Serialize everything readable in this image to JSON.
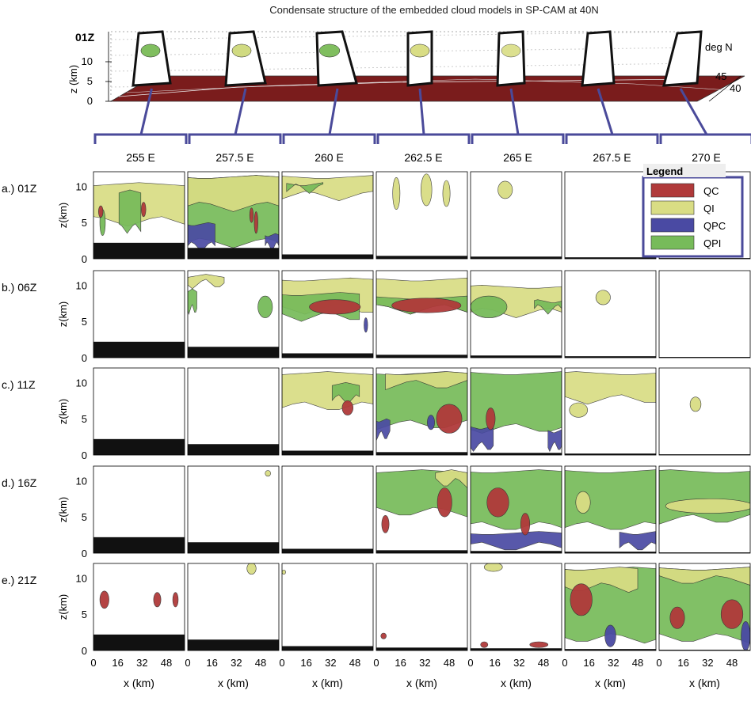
{
  "title": "Condensate structure of the embedded cloud models in SP-CAM at 40N",
  "colors": {
    "QC": "#b03a3a",
    "QI": "#d9dd84",
    "QPC": "#4a4aa3",
    "QPI": "#77bb5a",
    "terrain": "#111111",
    "strip": "#7a1c1c",
    "connector": "#4a4a9a"
  },
  "chart_data": {
    "type": "heatmap",
    "title": "Condensate structure of the embedded cloud models in SP-CAM at 40N",
    "top_panel": {
      "time_label": "01Z",
      "z_label": "z (km)",
      "z_ticks": [
        "0",
        "5",
        "10"
      ],
      "lat_label": "deg N",
      "lat_ticks": [
        "40",
        "45"
      ]
    },
    "longitudes": [
      "255 E",
      "257.5 E",
      "260 E",
      "262.5 E",
      "265 E",
      "267.5 E",
      "270 E"
    ],
    "times": [
      "a.) 01Z",
      "b.) 06Z",
      "c.) 11Z",
      "d.) 16Z",
      "e.) 21Z"
    ],
    "xlabel": "x (km)",
    "ylabel": "z(km)",
    "x_ticks": [
      "0",
      "16",
      "32",
      "48"
    ],
    "y_ticks": [
      "0",
      "5",
      "10"
    ],
    "ylim": [
      0,
      12
    ],
    "xlim": [
      0,
      60
    ],
    "legend": {
      "title": "Legend",
      "entries": [
        {
          "label": "QC",
          "color": "#b03a3a"
        },
        {
          "label": "QI",
          "color": "#d9dd84"
        },
        {
          "label": "QPC",
          "color": "#4a4aa3"
        },
        {
          "label": "QPI",
          "color": "#77bb5a"
        }
      ]
    },
    "terrain_km": [
      2.2,
      1.5,
      0.6,
      0.4,
      0.3,
      0.2,
      0.1
    ],
    "panels": [
      [
        {
          "shapes": [
            [
              "QI",
              "b",
              0,
              100,
              4.5,
              10.5
            ],
            [
              "QPI",
              "b",
              28,
              52,
              3.5,
              9.5
            ],
            [
              "QPI",
              "e",
              10,
              3,
              5,
              1.8
            ],
            [
              "QC",
              "e",
              8,
              2.5,
              6.5,
              0.8
            ],
            [
              "QC",
              "e",
              55,
              2.5,
              6.8,
              1
            ]
          ]
        },
        {
          "shapes": [
            [
              "QPI",
              "b",
              0,
              100,
              1.5,
              11.5
            ],
            [
              "QI",
              "b",
              0,
              100,
              6.5,
              11.5
            ],
            [
              "QPC",
              "b",
              0,
              30,
              1,
              5
            ],
            [
              "QPC",
              "b",
              85,
              100,
              1,
              3.5
            ],
            [
              "QC",
              "e",
              75,
              2,
              5,
              1.5
            ],
            [
              "QC",
              "e",
              70,
              2,
              6,
              1
            ]
          ]
        },
        {
          "shapes": [
            [
              "QI",
              "b",
              0,
              100,
              8,
              11.5
            ],
            [
              "QPI",
              "b",
              5,
              45,
              9,
              10.5
            ]
          ]
        },
        {
          "shapes": [
            [
              "QI",
              "e",
              22,
              4,
              9,
              2.2
            ],
            [
              "QI",
              "e",
              55,
              6,
              9.5,
              2.2
            ],
            [
              "QI",
              "e",
              77,
              4,
              9,
              1.8
            ]
          ]
        },
        {
          "shapes": [
            [
              "QI",
              "e",
              38,
              8,
              9.5,
              1.2
            ]
          ]
        },
        {
          "shapes": []
        },
        {
          "shapes": []
        }
      ],
      [
        {
          "shapes": []
        },
        {
          "shapes": [
            [
              "QI",
              "b",
              0,
              40,
              9.5,
              11.5
            ],
            [
              "QPI",
              "b",
              0,
              10,
              6,
              9.5
            ],
            [
              "QPI",
              "e",
              85,
              8,
              7,
              1.5
            ]
          ]
        },
        {
          "shapes": [
            [
              "QI",
              "b",
              0,
              100,
              6,
              11
            ],
            [
              "QPI",
              "b",
              0,
              85,
              5,
              9
            ],
            [
              "QC",
              "e",
              58,
              28,
              7,
              1
            ],
            [
              "QPC",
              "e",
              92,
              2,
              4.5,
              1
            ]
          ]
        },
        {
          "shapes": [
            [
              "QI",
              "b",
              0,
              100,
              6,
              11
            ],
            [
              "QPI",
              "b",
              0,
              100,
              6,
              8.5
            ],
            [
              "QC",
              "e",
              55,
              38,
              7.2,
              1
            ]
          ]
        },
        {
          "shapes": [
            [
              "QI",
              "b",
              0,
              100,
              5.5,
              10
            ],
            [
              "QPI",
              "b",
              70,
              100,
              6,
              8
            ],
            [
              "QPI",
              "e",
              20,
              20,
              7,
              1.5
            ]
          ]
        },
        {
          "shapes": [
            [
              "QI",
              "e",
              42,
              8,
              8.3,
              1
            ]
          ]
        },
        {
          "shapes": []
        }
      ],
      [
        {
          "shapes": []
        },
        {
          "shapes": []
        },
        {
          "shapes": [
            [
              "QI",
              "b",
              0,
              100,
              6,
              11.5
            ],
            [
              "QPI",
              "b",
              55,
              85,
              7,
              10
            ],
            [
              "QC",
              "e",
              72,
              6,
              6.5,
              1
            ]
          ]
        },
        {
          "shapes": [
            [
              "QPI",
              "b",
              0,
              100,
              3.5,
              11.5
            ],
            [
              "QI",
              "b",
              10,
              100,
              9,
              11.5
            ],
            [
              "QPC",
              "b",
              0,
              15,
              2,
              5
            ],
            [
              "QC",
              "e",
              80,
              14,
              5,
              2
            ],
            [
              "QPC",
              "e",
              60,
              4,
              4.5,
              1
            ]
          ]
        },
        {
          "shapes": [
            [
              "QPI",
              "b",
              0,
              100,
              3,
              11.5
            ],
            [
              "QPC",
              "b",
              0,
              25,
              0.5,
              4
            ],
            [
              "QPC",
              "b",
              85,
              100,
              0.5,
              3.5
            ],
            [
              "QC",
              "e",
              22,
              5,
              5,
              1.5
            ]
          ]
        },
        {
          "shapes": [
            [
              "QI",
              "b",
              0,
              100,
              7,
              11.5
            ],
            [
              "QI",
              "e",
              15,
              10,
              6.2,
              1
            ]
          ]
        },
        {
          "shapes": [
            [
              "QI",
              "e",
              40,
              6,
              7,
              1
            ]
          ]
        }
      ],
      [
        {
          "shapes": []
        },
        {
          "shapes": [
            [
              "QI",
              "e",
              88,
              3,
              11,
              0.4
            ]
          ]
        },
        {
          "shapes": []
        },
        {
          "shapes": [
            [
              "QPI",
              "b",
              0,
              100,
              5,
              11.5
            ],
            [
              "QI",
              "b",
              65,
              100,
              9,
              11.5
            ],
            [
              "QC",
              "e",
              75,
              8,
              7,
              2
            ],
            [
              "QC",
              "e",
              10,
              4,
              4,
              1.2
            ]
          ]
        },
        {
          "shapes": [
            [
              "QPI",
              "b",
              0,
              100,
              3,
              11.5
            ],
            [
              "QPC",
              "b",
              0,
              100,
              0.2,
              3
            ],
            [
              "QC",
              "e",
              30,
              12,
              7,
              2
            ],
            [
              "QC",
              "e",
              60,
              5,
              4,
              1.5
            ]
          ]
        },
        {
          "shapes": [
            [
              "QPI",
              "b",
              0,
              100,
              3,
              11.5
            ],
            [
              "QPC",
              "b",
              60,
              100,
              0.2,
              3
            ],
            [
              "QI",
              "e",
              20,
              8,
              7,
              1.5
            ]
          ]
        },
        {
          "shapes": [
            [
              "QPI",
              "b",
              0,
              100,
              4,
              11.5
            ],
            [
              "QI",
              "e",
              55,
              48,
              6.5,
              1
            ]
          ]
        }
      ],
      [
        {
          "shapes": [
            [
              "QC",
              "e",
              12,
              5,
              7,
              1.2
            ],
            [
              "QC",
              "e",
              70,
              4,
              7,
              1
            ],
            [
              "QC",
              "e",
              90,
              3,
              7,
              1
            ]
          ]
        },
        {
          "shapes": [
            [
              "QI",
              "e",
              70,
              5,
              11.3,
              0.8
            ]
          ]
        },
        {
          "shapes": [
            [
              "QI",
              "e",
              2,
              2,
              10.8,
              0.3
            ]
          ]
        },
        {
          "shapes": [
            [
              "QC",
              "e",
              8,
              3,
              2,
              0.4
            ]
          ]
        },
        {
          "shapes": [
            [
              "QI",
              "e",
              25,
              10,
              11.5,
              0.6
            ],
            [
              "QC",
              "e",
              15,
              4,
              0.8,
              0.4
            ],
            [
              "QC",
              "e",
              75,
              10,
              0.8,
              0.4
            ]
          ]
        },
        {
          "shapes": [
            [
              "QPI",
              "b",
              0,
              100,
              1,
              11.5
            ],
            [
              "QI",
              "b",
              0,
              80,
              8,
              11.5
            ],
            [
              "QC",
              "e",
              18,
              12,
              7,
              2.2
            ],
            [
              "QPC",
              "e",
              50,
              6,
              2,
              1.5
            ]
          ]
        },
        {
          "shapes": [
            [
              "QPI",
              "b",
              0,
              100,
              1,
              11.5
            ],
            [
              "QI",
              "b",
              0,
              100,
              9,
              11.5
            ],
            [
              "QC",
              "e",
              80,
              12,
              5,
              2
            ],
            [
              "QC",
              "e",
              20,
              8,
              4.5,
              1.5
            ],
            [
              "QPC",
              "e",
              95,
              5,
              2,
              2
            ]
          ]
        }
      ]
    ]
  }
}
